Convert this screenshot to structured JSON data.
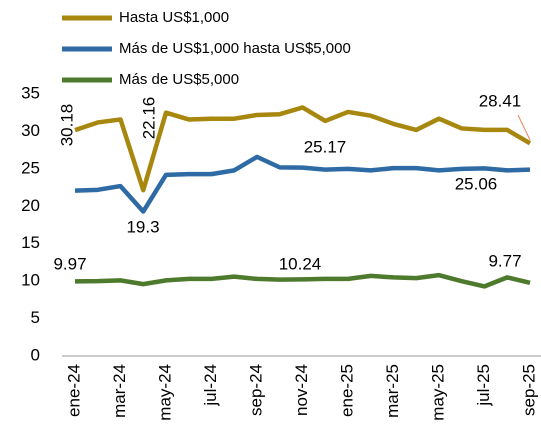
{
  "chart_data": {
    "type": "line",
    "categories": [
      "ene-24",
      null,
      "mar-24",
      null,
      "may-24",
      null,
      "jul-24",
      null,
      "sep-24",
      null,
      "nov-24",
      null,
      "ene-25",
      null,
      "mar-25",
      null,
      "may-25",
      null,
      "jul-25",
      null,
      "sep-25"
    ],
    "series": [
      {
        "name": "Hasta US$1,000",
        "color": "#a8870f",
        "values": [
          30.18,
          31.2,
          31.6,
          22.16,
          32.5,
          31.6,
          31.7,
          31.7,
          32.2,
          32.3,
          33.2,
          31.4,
          32.6,
          32.1,
          31.0,
          30.2,
          31.7,
          30.4,
          30.2,
          30.2,
          28.41
        ],
        "value_labels": [
          "30.18",
          null,
          null,
          "22.16",
          null,
          null,
          null,
          null,
          null,
          null,
          null,
          null,
          null,
          null,
          null,
          null,
          null,
          null,
          null,
          null,
          "28.41"
        ]
      },
      {
        "name": "Más de US$1,000 hasta US$5,000",
        "color": "#2e6aa3",
        "values": [
          22.1,
          22.2,
          22.7,
          19.3,
          24.2,
          24.3,
          24.3,
          24.8,
          26.6,
          25.2,
          25.17,
          24.9,
          25.0,
          24.8,
          25.1,
          25.1,
          24.8,
          25.0,
          25.06,
          24.8,
          24.9
        ],
        "value_labels": [
          null,
          null,
          null,
          "19.3",
          null,
          null,
          null,
          null,
          null,
          null,
          "25.17",
          null,
          null,
          null,
          null,
          null,
          null,
          null,
          "25.06",
          null,
          null
        ]
      },
      {
        "name": "Más de US$5,000",
        "color": "#4e7a2e",
        "values": [
          9.97,
          10.0,
          10.1,
          9.6,
          10.1,
          10.3,
          10.3,
          10.6,
          10.3,
          10.2,
          10.24,
          10.3,
          10.3,
          10.7,
          10.5,
          10.4,
          10.8,
          10.0,
          9.3,
          10.5,
          9.77
        ],
        "value_labels": [
          "9.97",
          null,
          null,
          null,
          null,
          null,
          null,
          null,
          null,
          null,
          "10.24",
          null,
          null,
          null,
          null,
          null,
          null,
          null,
          null,
          null,
          "9.77"
        ]
      }
    ],
    "ylim": [
      0,
      35
    ],
    "yticks": [
      0,
      5,
      10,
      15,
      20,
      25,
      30,
      35
    ],
    "legend": "top"
  }
}
